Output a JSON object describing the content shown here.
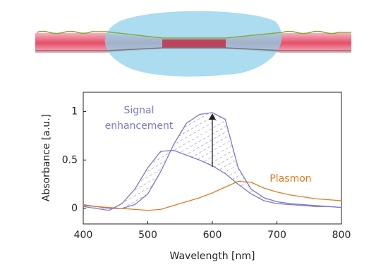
{
  "chart_data": {
    "type": "line",
    "xlabel": "Wavelength [nm]",
    "ylabel": "Absorbance [a.u.]",
    "x": [
      400,
      420,
      440,
      460,
      480,
      500,
      520,
      540,
      560,
      580,
      600,
      620,
      640,
      660,
      680,
      700,
      720,
      740,
      760,
      780,
      800
    ],
    "series": [
      {
        "color": "#7b78c8",
        "values": [
          0.02,
          0.0,
          -0.02,
          0.05,
          0.2,
          0.42,
          0.59,
          0.6,
          0.55,
          0.5,
          0.44,
          0.36,
          0.25,
          0.15,
          0.08,
          0.05,
          0.04,
          0.03,
          0.02,
          0.02,
          0.01
        ]
      },
      {
        "color": "#7b78c8",
        "values": [
          0.03,
          0.02,
          0.0,
          0.0,
          0.04,
          0.15,
          0.38,
          0.66,
          0.88,
          0.97,
          0.99,
          0.92,
          0.42,
          0.2,
          0.11,
          0.07,
          0.05,
          0.04,
          0.03,
          0.02,
          0.01
        ]
      },
      {
        "color": "#e07b22",
        "values": [
          0.04,
          0.02,
          0.01,
          0.0,
          -0.01,
          -0.02,
          -0.01,
          0.03,
          0.07,
          0.11,
          0.16,
          0.22,
          0.28,
          0.27,
          0.21,
          0.17,
          0.14,
          0.12,
          0.1,
          0.09,
          0.08
        ]
      }
    ],
    "annotations": [
      "Signal",
      "enhancement",
      "Plasmon"
    ],
    "xlim": [
      400,
      800
    ],
    "xticks": [
      400,
      500,
      600,
      700,
      800
    ],
    "ylim": [
      -0.16,
      1.2
    ],
    "yticks": [
      0,
      0.5,
      1
    ],
    "grid": false
  }
}
